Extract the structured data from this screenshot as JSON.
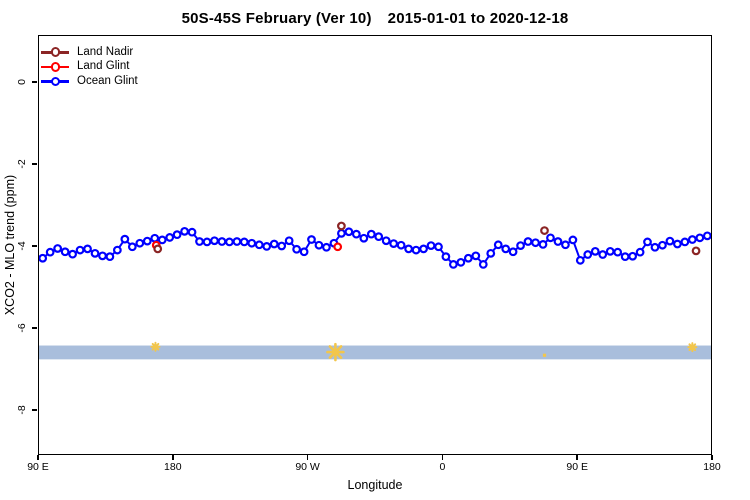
{
  "header": {
    "title_main": "50S-45S February (Ver 10)",
    "title_dates": "2015-01-01 to 2020-12-18"
  },
  "axes": {
    "x_label": "Longitude",
    "y_label": "XCO2 - MLO trend (ppm)"
  },
  "legend": {
    "items": [
      {
        "label": "Land Nadir",
        "color": "#8B2525"
      },
      {
        "label": "Land Glint",
        "color": "#FF0000"
      },
      {
        "label": "Ocean Glint",
        "color": "#0000FF"
      }
    ]
  },
  "chart_data": {
    "type": "line",
    "title": "50S-45S February (Ver 10)  2015-01-01 to 2020-12-18",
    "xlabel": "Longitude",
    "ylabel": "XCO2 - MLO trend (ppm)",
    "xlim": [
      0,
      450
    ],
    "ylim": [
      -9.1,
      1.15
    ],
    "grid": false,
    "legend_position": "top-left",
    "x_ticks": [
      {
        "pos": 0,
        "label": "90 E"
      },
      {
        "pos": 90,
        "label": "180"
      },
      {
        "pos": 180,
        "label": "90 W"
      },
      {
        "pos": 270,
        "label": "0"
      },
      {
        "pos": 360,
        "label": "90 E"
      },
      {
        "pos": 450,
        "label": "180"
      }
    ],
    "y_ticks": [
      {
        "pos": 0,
        "label": "0"
      },
      {
        "pos": -2,
        "label": "-2"
      },
      {
        "pos": -4,
        "label": "-4"
      },
      {
        "pos": -6,
        "label": "-6"
      },
      {
        "pos": -8,
        "label": "-8"
      }
    ],
    "series": [
      {
        "name": "Ocean Glint",
        "color": "#0000FF",
        "marker": "open-circle",
        "line": true,
        "x": [
          2.5,
          7.5,
          12.5,
          17.5,
          22.5,
          27.5,
          32.5,
          37.5,
          42.5,
          47.5,
          52.5,
          57.5,
          62.5,
          67.5,
          72.5,
          77.5,
          82.5,
          87.5,
          92.5,
          97.5,
          102.5,
          107.5,
          112.5,
          117.5,
          122.5,
          127.5,
          132.5,
          137.5,
          142.5,
          147.5,
          152.5,
          157.5,
          162.5,
          167.5,
          172.5,
          177.5,
          182.5,
          187.5,
          192.5,
          197.5,
          202.5,
          207.5,
          212.5,
          217.5,
          222.5,
          227.5,
          232.5,
          237.5,
          242.5,
          247.5,
          252.5,
          257.5,
          262.5,
          267.5,
          272.5,
          277.5,
          282.5,
          287.5,
          292.5,
          297.5,
          302.5,
          307.5,
          312.5,
          317.5,
          322.5,
          327.5,
          332.5,
          337.5,
          342.5,
          347.5,
          352.5,
          357.5,
          362.5,
          367.5,
          372.5,
          377.5,
          382.5,
          387.5,
          392.5,
          397.5,
          402.5,
          407.5,
          412.5,
          417.5,
          422.5,
          427.5,
          432.5,
          437.5,
          442.5,
          447.5
        ],
        "y": [
          -4.3,
          -4.15,
          -4.06,
          -4.14,
          -4.2,
          -4.1,
          -4.07,
          -4.18,
          -4.24,
          -4.26,
          -4.1,
          -3.83,
          -4.02,
          -3.93,
          -3.88,
          -3.81,
          -3.85,
          -3.79,
          -3.72,
          -3.64,
          -3.66,
          -3.89,
          -3.9,
          -3.87,
          -3.89,
          -3.9,
          -3.89,
          -3.9,
          -3.93,
          -3.97,
          -4.01,
          -3.95,
          -4.0,
          -3.87,
          -4.08,
          -4.14,
          -3.84,
          -3.98,
          -4.03,
          -3.93,
          -3.69,
          -3.65,
          -3.71,
          -3.81,
          -3.71,
          -3.77,
          -3.87,
          -3.94,
          -3.98,
          -4.07,
          -4.1,
          -4.07,
          -3.99,
          -4.02,
          -4.26,
          -4.45,
          -4.4,
          -4.3,
          -4.24,
          -4.45,
          -4.18,
          -3.97,
          -4.07,
          -4.14,
          -3.99,
          -3.89,
          -3.92,
          -3.96,
          -3.8,
          -3.89,
          -3.97,
          -3.85,
          -4.35,
          -4.21,
          -4.13,
          -4.21,
          -4.13,
          -4.15,
          -4.26,
          -4.25,
          -4.15,
          -3.9,
          -4.03,
          -3.98,
          -3.88,
          -3.95,
          -3.9,
          -3.84,
          -3.8,
          -3.75
        ]
      },
      {
        "name": "Land Glint",
        "color": "#FF0000",
        "marker": "open-circle",
        "line": false,
        "x": [
          78.5,
          200
        ],
        "y": [
          -3.98,
          -4.02
        ]
      },
      {
        "name": "Land Nadir",
        "color": "#8B2525",
        "marker": "open-circle",
        "line": false,
        "x": [
          79.5,
          202.5,
          338.5,
          440
        ],
        "y": [
          -4.07,
          -3.51,
          -3.62,
          -4.12
        ]
      }
    ],
    "band": {
      "x_from": 0,
      "x_to": 450,
      "y_from": -6.44,
      "y_to": -6.78,
      "color": "#A9BEDC"
    },
    "markers": [
      {
        "x": 78,
        "y": -6.47,
        "shape": "asterisk",
        "size": 4,
        "color": "#F2C64C"
      },
      {
        "x": 198.5,
        "y": -6.6,
        "shape": "asterisk",
        "size": 8,
        "color": "#F2C64C"
      },
      {
        "x": 338.5,
        "y": -6.68,
        "shape": "dot",
        "size": 1.6,
        "color": "#F2C64C"
      },
      {
        "x": 437.5,
        "y": -6.48,
        "shape": "asterisk",
        "size": 4,
        "color": "#F2C64C"
      }
    ]
  }
}
